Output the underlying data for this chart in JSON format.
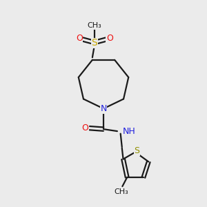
{
  "background_color": "#ebebeb",
  "bond_color": "#1a1a1a",
  "n_color": "#2020dd",
  "o_color": "#ee1010",
  "s_color": "#c8a800",
  "s_th_color": "#909000",
  "lw": 1.6,
  "fig_size": [
    3.0,
    3.0
  ],
  "dpi": 100,
  "xlim": [
    0,
    10
  ],
  "ylim": [
    0,
    10
  ]
}
